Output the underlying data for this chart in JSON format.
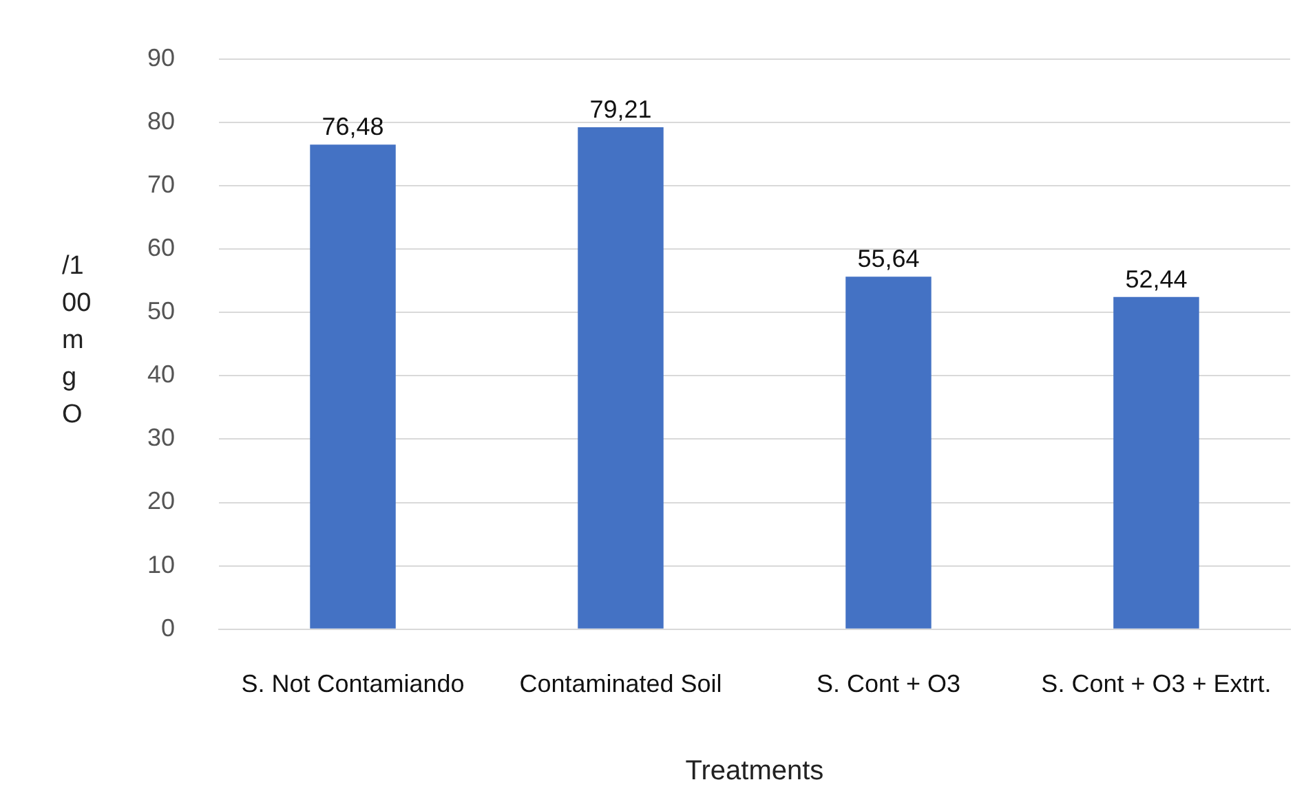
{
  "chart_data": {
    "type": "bar",
    "xlabel": "Treatments",
    "ylabel": "/1 00 mg O",
    "categories": [
      "S. Not Contamiando",
      "Contaminated Soil",
      "S. Cont + O3",
      "S. Cont + O3 + Extrt."
    ],
    "values": [
      76.48,
      79.21,
      55.64,
      52.44
    ],
    "value_labels": [
      "76,48",
      "79,21",
      "55,64",
      "52,44"
    ],
    "color": "#4472c4",
    "ylim": [
      0,
      90
    ],
    "yticks": [
      0,
      10,
      20,
      30,
      40,
      50,
      60,
      70,
      80,
      90
    ],
    "grid": "y",
    "legend": false
  }
}
